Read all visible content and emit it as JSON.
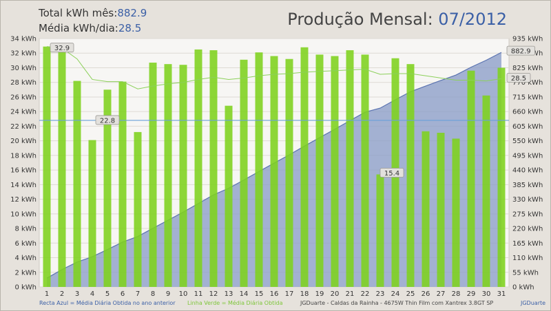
{
  "header": {
    "total_label": "Total kWh mês:",
    "total_value": "882.9",
    "avg_label": "Média kWh/dia:",
    "avg_value": "28.5",
    "title_label": "Produção Mensal:",
    "title_value": "07/2012"
  },
  "chart_data": {
    "type": "bar",
    "title": "Produção Mensal: 07/2012",
    "categories": [
      "1",
      "2",
      "3",
      "4",
      "5",
      "6",
      "7",
      "8",
      "9",
      "10",
      "11",
      "12",
      "13",
      "14",
      "15",
      "16",
      "17",
      "18",
      "19",
      "20",
      "21",
      "22",
      "23",
      "24",
      "25",
      "26",
      "27",
      "28",
      "29",
      "30",
      "31"
    ],
    "series": [
      {
        "values": [
          32.9,
          32.5,
          28.2,
          20.1,
          27.0,
          28.1,
          21.2,
          30.7,
          30.5,
          30.4,
          32.5,
          32.4,
          24.8,
          31.1,
          32.1,
          31.6,
          31.2,
          32.8,
          31.8,
          31.6,
          32.4,
          31.8,
          15.4,
          31.3,
          30.5,
          21.3,
          21.1,
          20.3,
          29.6,
          26.2,
          30.0
        ],
        "color": "#7ed21c"
      },
      {
        "name": "Linha Verde = Média Diária Obtida",
        "values": [
          32.9,
          32.7,
          31.2,
          28.4,
          28.1,
          28.1,
          27.1,
          27.5,
          27.8,
          28.0,
          28.4,
          28.7,
          28.4,
          28.6,
          28.9,
          29.1,
          29.2,
          29.4,
          29.5,
          29.6,
          29.7,
          29.8,
          29.1,
          29.2,
          29.2,
          28.9,
          28.6,
          28.3,
          28.3,
          28.2,
          28.5
        ],
        "color": "#8cd05a"
      },
      {
        "values": [
          32.9,
          65.4,
          93.6,
          113.7,
          140.7,
          168.8,
          190.0,
          220.7,
          251.2,
          281.6,
          314.1,
          346.5,
          371.3,
          402.4,
          434.5,
          466.1,
          497.3,
          530.1,
          561.9,
          593.5,
          625.9,
          657.7,
          673.1,
          704.4,
          734.9,
          756.2,
          777.3,
          797.6,
          827.2,
          853.4,
          882.9
        ],
        "color": "#8c9ec8"
      }
    ],
    "reference_line": {
      "name": "Recta Azul = Média Diária Obtida no ano anterior",
      "value": 22.8,
      "color": "#6aa0d8"
    },
    "labels": {
      "max": "32.9",
      "min": "15.4",
      "ref": "22.8",
      "cum_end": "882.9",
      "avg_end": "28.5"
    },
    "y_left": {
      "min": 0,
      "max": 34,
      "step": 2,
      "unit": " kWh"
    },
    "y_right": {
      "min": 0,
      "max": 935,
      "step": 55,
      "unit": " kWh"
    },
    "grid": true
  },
  "footer": {
    "blue_note": "Recta Azul = Média Diária Obtida no ano anterior",
    "green_note": "Linha Verde = Média Diária Obtida",
    "system": "JGDuarte  -  Caldas da Rainha  -  4675W Thin Film com Xantrex 3.8GT SP",
    "brand": "JGDuarte"
  }
}
